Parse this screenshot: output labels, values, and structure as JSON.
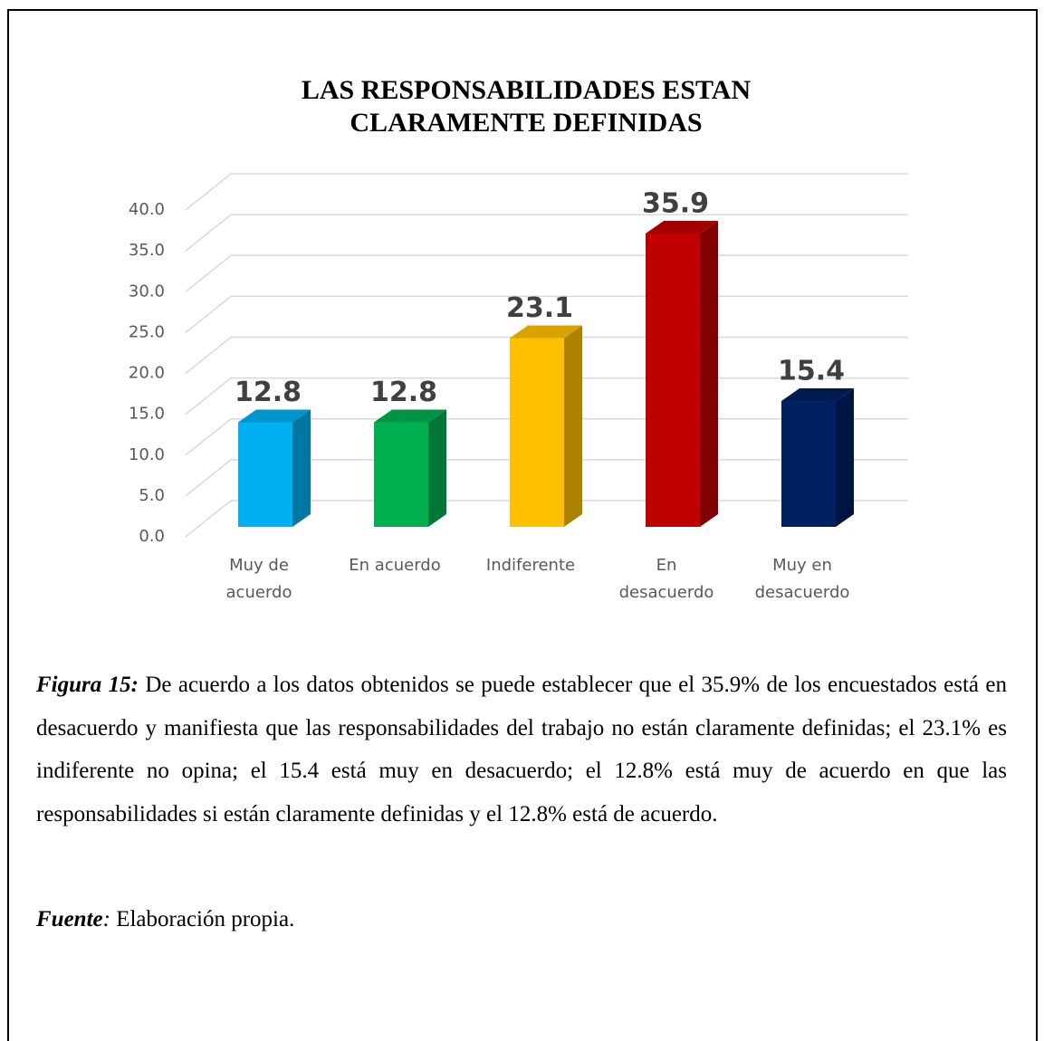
{
  "chart_data": {
    "type": "bar3d",
    "title": "LAS RESPONSABILIDADES ESTAN CLARAMENTE DEFINIDAS",
    "categories": [
      "Muy de acuerdo",
      "En acuerdo",
      "Indiferente",
      "En desacuerdo",
      "Muy en desacuerdo"
    ],
    "values": [
      12.8,
      12.8,
      23.1,
      35.9,
      15.4
    ],
    "colors": [
      "#00b0f0",
      "#00b050",
      "#ffc000",
      "#c00000",
      "#002060"
    ],
    "ylim": [
      0,
      40
    ],
    "yticks": [
      {
        "value": 0,
        "label": "0.0"
      },
      {
        "value": 5,
        "label": "5.0"
      },
      {
        "value": 10,
        "label": "10.0"
      },
      {
        "value": 15,
        "label": "15.0"
      },
      {
        "value": 20,
        "label": "20.0"
      },
      {
        "value": 25,
        "label": "25.0"
      },
      {
        "value": 30,
        "label": "30.0"
      },
      {
        "value": 35,
        "label": "35.0"
      },
      {
        "value": 40,
        "label": "40.0"
      }
    ],
    "grid": true
  },
  "caption": {
    "figure_label": "Figura 15:",
    "text": " De acuerdo a los datos obtenidos se puede establecer que el 35.9% de los encuestados está en desacuerdo y manifiesta que las responsabilidades del trabajo no están claramente definidas; el 23.1% es indiferente no opina; el 15.4 está muy en desacuerdo; el 12.8% está muy de acuerdo en que las responsabilidades si están claramente definidas y el 12.8% está de acuerdo.",
    "source_label": "Fuente",
    "source_colon": ":",
    "source_text": " Elaboración propia."
  }
}
